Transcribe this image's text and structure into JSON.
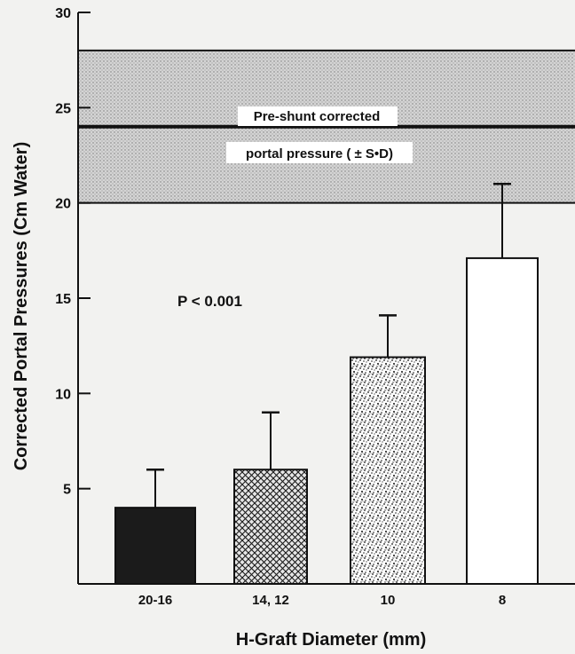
{
  "chart_data": {
    "type": "bar",
    "categories": [
      "20-16",
      "14, 12",
      "10",
      "8"
    ],
    "values": [
      4.0,
      6.0,
      11.9,
      17.1
    ],
    "error_upper": [
      6.0,
      9.0,
      14.1,
      21.0
    ],
    "ylim": [
      0,
      30
    ],
    "yticks": [
      "5",
      "10",
      "15",
      "20",
      "25",
      "30"
    ],
    "ytick_values": [
      5,
      10,
      15,
      20,
      25,
      30
    ],
    "xlabel": "H-Graft Diameter (mm)",
    "ylabel": "Corrected Portal Pressures (Cm Water)",
    "band": {
      "mean": 24,
      "low": 20,
      "high": 28,
      "label_line1": "Pre-shunt corrected",
      "label_line2": "portal pressure ( ± S•D)"
    },
    "annotation": "P < 0.001",
    "bar_fills": [
      "solid-black",
      "crosshatch",
      "stipple",
      "white"
    ]
  }
}
